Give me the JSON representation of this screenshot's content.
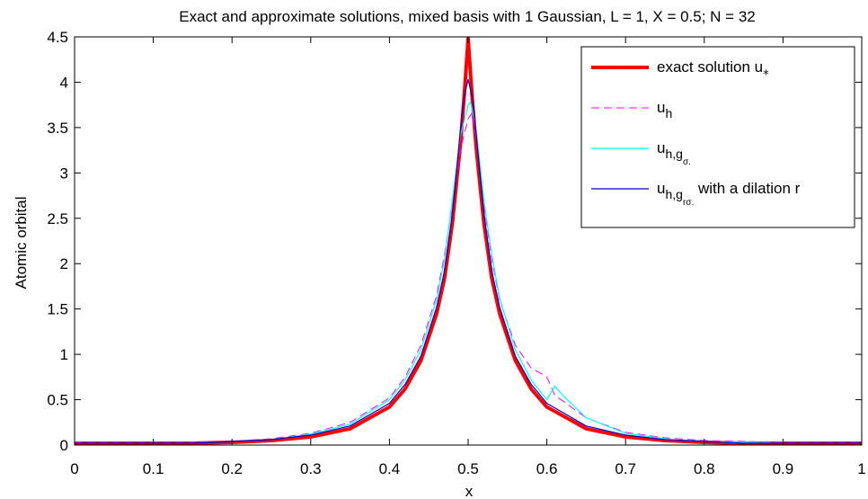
{
  "chart_data": {
    "type": "line",
    "title": "Exact and approximate solutions, mixed basis with 1 Gaussian, L = 1, X = 0.5; N = 32",
    "xlabel": "x",
    "ylabel": "Atomic orbital",
    "xlim": [
      0,
      1
    ],
    "ylim": [
      0,
      4.5
    ],
    "x_ticks": [
      0,
      0.1,
      0.2,
      0.3,
      0.4,
      0.5,
      0.6,
      0.7,
      0.8,
      0.9,
      1
    ],
    "x_tick_labels": [
      "0",
      "0.1",
      "0.2",
      "0.3",
      "0.4",
      "0.5",
      "0.6",
      "0.7",
      "0.8",
      "0.9",
      "1"
    ],
    "y_ticks": [
      0,
      0.5,
      1,
      1.5,
      2,
      2.5,
      3,
      3.5,
      4,
      4.5
    ],
    "y_tick_labels": [
      "0",
      "0.5",
      "1",
      "1.5",
      "2",
      "2.5",
      "3",
      "3.5",
      "4",
      "4.5"
    ],
    "grid": false,
    "legend_position": "top-right",
    "colors": {
      "exact": "#ff0000",
      "uh": "#ff00ff",
      "uhg": "#00ffff",
      "uhgr": "#0000cc"
    },
    "legend": [
      {
        "main": "exact solution u",
        "sub": "*",
        "subsub": "",
        "suffix": ""
      },
      {
        "main": "u",
        "sub": "h",
        "subsub": "",
        "suffix": ""
      },
      {
        "main": "u",
        "sub": "h,g",
        "subsub": "σ.",
        "suffix": ""
      },
      {
        "main": "u",
        "sub": "h,g",
        "subsub": "rσ.",
        "suffix": " with a dilation r"
      }
    ],
    "series": [
      {
        "style": "solid-thick",
        "x": [
          0,
          0.05,
          0.1,
          0.15,
          0.2,
          0.25,
          0.3,
          0.35,
          0.4,
          0.42,
          0.44,
          0.46,
          0.47,
          0.48,
          0.49,
          0.495,
          0.5,
          0.505,
          0.51,
          0.52,
          0.53,
          0.54,
          0.56,
          0.58,
          0.6,
          0.65,
          0.7,
          0.75,
          0.8,
          0.85,
          0.9,
          0.95,
          1
        ],
        "y": [
          0.02,
          0.02,
          0.02,
          0.02,
          0.03,
          0.05,
          0.09,
          0.18,
          0.42,
          0.62,
          0.93,
          1.45,
          1.84,
          2.45,
          3.3,
          3.85,
          4.48,
          3.85,
          3.3,
          2.45,
          1.84,
          1.45,
          0.93,
          0.62,
          0.42,
          0.18,
          0.09,
          0.05,
          0.03,
          0.02,
          0.02,
          0.02,
          0.02
        ]
      },
      {
        "style": "dashed",
        "x": [
          0,
          0.05,
          0.1,
          0.15,
          0.2,
          0.25,
          0.3,
          0.35,
          0.4,
          0.42,
          0.44,
          0.46,
          0.47,
          0.48,
          0.49,
          0.5,
          0.505,
          0.51,
          0.52,
          0.53,
          0.54,
          0.56,
          0.58,
          0.6,
          0.61,
          0.65,
          0.7,
          0.75,
          0.8,
          0.85,
          0.9,
          0.95,
          1
        ],
        "y": [
          0.03,
          0.03,
          0.03,
          0.03,
          0.04,
          0.07,
          0.13,
          0.25,
          0.52,
          0.75,
          1.1,
          1.65,
          2.1,
          2.65,
          3.25,
          3.6,
          3.66,
          3.4,
          2.65,
          2.05,
          1.6,
          1.1,
          0.85,
          0.75,
          0.55,
          0.3,
          0.14,
          0.08,
          0.05,
          0.04,
          0.03,
          0.03,
          0.03
        ]
      },
      {
        "style": "solid-thin",
        "x": [
          0,
          0.05,
          0.1,
          0.15,
          0.2,
          0.25,
          0.3,
          0.35,
          0.4,
          0.42,
          0.44,
          0.46,
          0.47,
          0.48,
          0.49,
          0.5,
          0.503,
          0.51,
          0.52,
          0.53,
          0.54,
          0.56,
          0.58,
          0.6,
          0.61,
          0.62,
          0.65,
          0.7,
          0.75,
          0.8,
          0.85,
          0.9,
          0.95,
          1
        ],
        "y": [
          0.02,
          0.02,
          0.02,
          0.02,
          0.04,
          0.06,
          0.12,
          0.23,
          0.5,
          0.72,
          1.05,
          1.6,
          2.05,
          2.7,
          3.4,
          3.75,
          3.78,
          3.5,
          2.7,
          2.1,
          1.62,
          1.05,
          0.72,
          0.5,
          0.65,
          0.55,
          0.3,
          0.13,
          0.07,
          0.04,
          0.03,
          0.02,
          0.02,
          0.02
        ]
      },
      {
        "style": "solid-thin",
        "x": [
          0,
          0.05,
          0.1,
          0.15,
          0.2,
          0.25,
          0.3,
          0.35,
          0.4,
          0.42,
          0.44,
          0.46,
          0.47,
          0.48,
          0.49,
          0.495,
          0.5,
          0.505,
          0.51,
          0.52,
          0.53,
          0.54,
          0.56,
          0.58,
          0.6,
          0.65,
          0.7,
          0.75,
          0.8,
          0.85,
          0.9,
          0.95,
          1
        ],
        "y": [
          0.02,
          0.02,
          0.02,
          0.02,
          0.04,
          0.06,
          0.11,
          0.21,
          0.46,
          0.67,
          0.98,
          1.52,
          1.92,
          2.55,
          3.45,
          3.85,
          4.03,
          3.85,
          3.45,
          2.55,
          1.92,
          1.52,
          0.98,
          0.67,
          0.46,
          0.21,
          0.11,
          0.06,
          0.04,
          0.02,
          0.02,
          0.02,
          0.02
        ]
      }
    ]
  }
}
